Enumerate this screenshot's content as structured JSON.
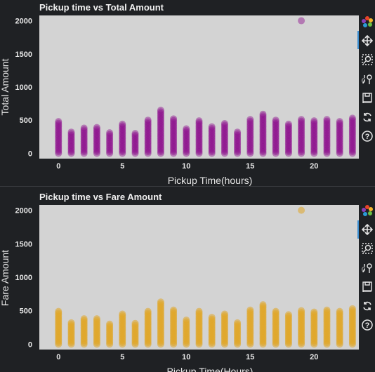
{
  "chart_data": [
    {
      "type": "scatter",
      "title": "Pickup time vs Total Amount",
      "xlabel": "Pickup Time(hours)",
      "ylabel": "Total Amount",
      "xlim": [
        -1.5,
        23.5
      ],
      "ylim": [
        -80,
        2080
      ],
      "x_ticks": [
        0,
        5,
        10,
        15,
        20
      ],
      "y_ticks": [
        0,
        500,
        1000,
        1500,
        2000
      ],
      "grid": false,
      "color": "#8b0a8b",
      "point_alpha": 0.45,
      "columns": [
        {
          "x": 0,
          "max": 480
        },
        {
          "x": 1,
          "max": 320
        },
        {
          "x": 2,
          "max": 380
        },
        {
          "x": 3,
          "max": 390
        },
        {
          "x": 4,
          "max": 310
        },
        {
          "x": 5,
          "max": 440
        },
        {
          "x": 6,
          "max": 300
        },
        {
          "x": 7,
          "max": 500
        },
        {
          "x": 8,
          "max": 650
        },
        {
          "x": 9,
          "max": 520
        },
        {
          "x": 10,
          "max": 370
        },
        {
          "x": 11,
          "max": 490
        },
        {
          "x": 12,
          "max": 400
        },
        {
          "x": 13,
          "max": 450
        },
        {
          "x": 14,
          "max": 320
        },
        {
          "x": 15,
          "max": 510
        },
        {
          "x": 16,
          "max": 590
        },
        {
          "x": 17,
          "max": 500
        },
        {
          "x": 18,
          "max": 440
        },
        {
          "x": 19,
          "max": 510
        },
        {
          "x": 20,
          "max": 490
        },
        {
          "x": 21,
          "max": 510
        },
        {
          "x": 22,
          "max": 480
        },
        {
          "x": 23,
          "max": 530
        }
      ],
      "outliers": [
        {
          "x": 19,
          "y": 2000
        }
      ]
    },
    {
      "type": "scatter",
      "title": "Pickup time vs Fare Amount",
      "xlabel": "Pickup Time(Hours)",
      "ylabel": "Fare Amount",
      "xlim": [
        -1.5,
        23.5
      ],
      "ylim": [
        -80,
        2080
      ],
      "x_ticks": [
        0,
        5,
        10,
        15,
        20
      ],
      "y_ticks": [
        0,
        500,
        1000,
        1500,
        2000
      ],
      "grid": false,
      "color": "#e0a526",
      "point_alpha": 0.55,
      "columns": [
        {
          "x": 0,
          "max": 490
        },
        {
          "x": 1,
          "max": 320
        },
        {
          "x": 2,
          "max": 380
        },
        {
          "x": 3,
          "max": 380
        },
        {
          "x": 4,
          "max": 300
        },
        {
          "x": 5,
          "max": 450
        },
        {
          "x": 6,
          "max": 310
        },
        {
          "x": 7,
          "max": 490
        },
        {
          "x": 8,
          "max": 630
        },
        {
          "x": 9,
          "max": 510
        },
        {
          "x": 10,
          "max": 360
        },
        {
          "x": 11,
          "max": 490
        },
        {
          "x": 12,
          "max": 400
        },
        {
          "x": 13,
          "max": 450
        },
        {
          "x": 14,
          "max": 320
        },
        {
          "x": 15,
          "max": 510
        },
        {
          "x": 16,
          "max": 590
        },
        {
          "x": 17,
          "max": 490
        },
        {
          "x": 18,
          "max": 440
        },
        {
          "x": 19,
          "max": 500
        },
        {
          "x": 20,
          "max": 480
        },
        {
          "x": 21,
          "max": 510
        },
        {
          "x": 22,
          "max": 490
        },
        {
          "x": 23,
          "max": 530
        }
      ],
      "outliers": [
        {
          "x": 19,
          "y": 2000
        }
      ]
    }
  ],
  "toolbar": {
    "icons": [
      "bokeh-logo-icon",
      "pan-icon",
      "box-zoom-icon",
      "wheel-zoom-icon",
      "save-icon",
      "reset-icon",
      "help-icon"
    ]
  },
  "colors": {
    "background": "#1f2124",
    "plot_area": "#d3d3d3",
    "active_tool": "#3a8ccf"
  }
}
